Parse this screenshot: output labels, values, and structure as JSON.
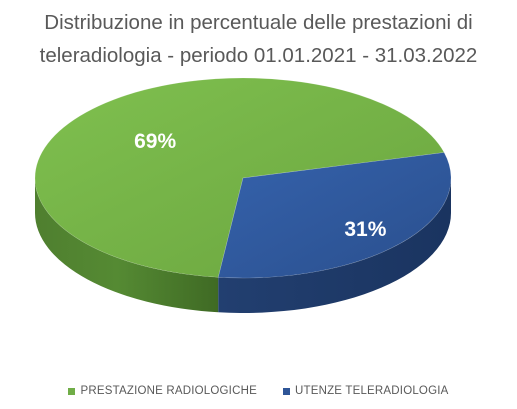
{
  "chart_data": {
    "type": "pie",
    "title_lines": [
      "Distribuzione in percentuale delle prestazioni di",
      "teleradiologia - periodo 01.01.2021 - 31.03.2022"
    ],
    "style": "3d",
    "legend_position": "bottom",
    "series": [
      {
        "name": "PRESTAZIONE RADIOLOGICHE",
        "value": 69,
        "label": "69%",
        "color": "#70ad47"
      },
      {
        "name": "UTENZE TELERADIOLOGIA",
        "value": 31,
        "label": "31%",
        "color": "#2e5597"
      }
    ]
  }
}
